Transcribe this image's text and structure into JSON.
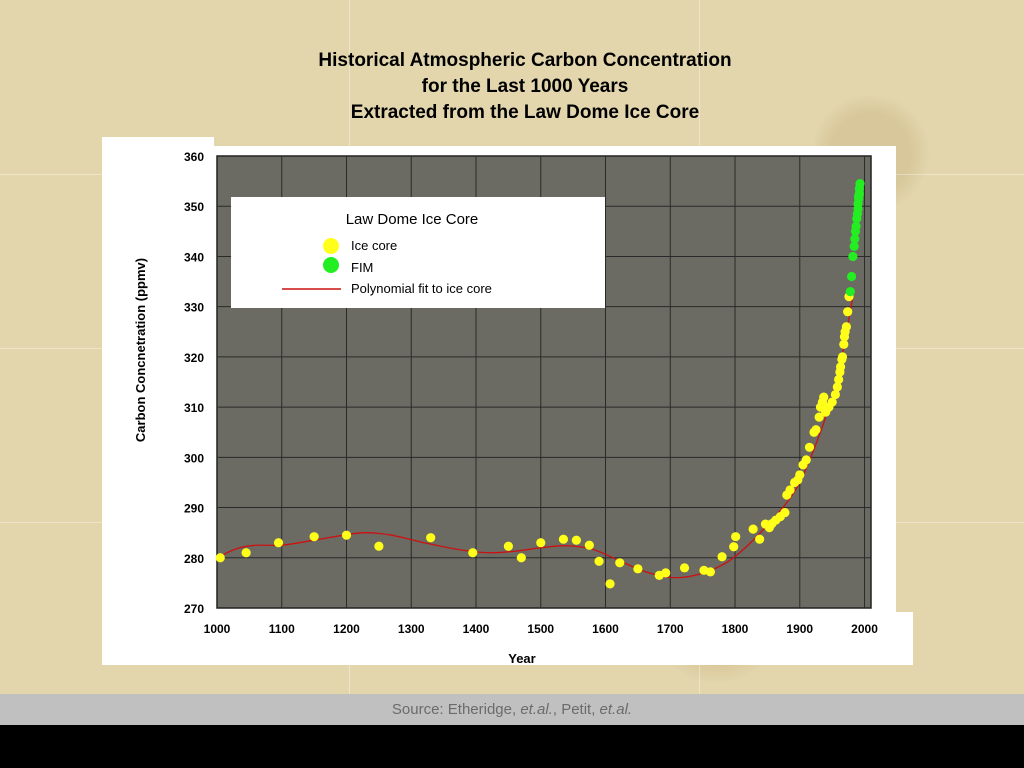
{
  "slide": {
    "title_lines": [
      "Historical Atmospheric Carbon Concentration",
      "for the Last 1000 Years",
      "Extracted from the Law Dome Ice Core"
    ],
    "source": {
      "prefix": "Source: Etheridge, ",
      "etal1": "et.al.",
      "middle": ", Petit, ",
      "etal2": "et.al."
    }
  },
  "chart_data": {
    "type": "scatter",
    "xlabel": "Year",
    "ylabel": "Carbon Concnetration (ppmv)",
    "xlim": [
      1000,
      2010
    ],
    "ylim": [
      270,
      360
    ],
    "x_ticks": [
      1000,
      1100,
      1200,
      1300,
      1400,
      1500,
      1600,
      1700,
      1800,
      1900,
      2000
    ],
    "y_ticks": [
      270,
      280,
      290,
      300,
      310,
      320,
      330,
      340,
      350,
      360
    ],
    "grid": true,
    "colors": {
      "plot_background": "#6b6b63",
      "grid": "#2a2a2a",
      "ice_core": "#ffff1a",
      "fim": "#22ee22",
      "fit": "#cc1111"
    },
    "legend": {
      "title": "Law Dome Ice Core",
      "placement": "top-left",
      "entries": [
        "Ice core",
        "FIM",
        "Polynomial fit to ice core"
      ]
    },
    "series": [
      {
        "name": "Ice core",
        "marker": "circle",
        "x": [
          1005,
          1045,
          1095,
          1150,
          1200,
          1250,
          1330,
          1395,
          1450,
          1470,
          1500,
          1535,
          1555,
          1575,
          1590,
          1607,
          1622,
          1650,
          1683,
          1693,
          1722,
          1752,
          1762,
          1780,
          1798,
          1801,
          1828,
          1838,
          1847,
          1853,
          1857,
          1863,
          1870,
          1877,
          1880,
          1885,
          1892,
          1897,
          1900,
          1905,
          1910,
          1915,
          1922,
          1925,
          1930,
          1932,
          1935,
          1937,
          1940,
          1945,
          1950,
          1955,
          1958,
          1960,
          1962,
          1963,
          1965,
          1966,
          1968,
          1969,
          1970,
          1972,
          1974,
          1976
        ],
        "y": [
          280,
          281,
          283,
          284.2,
          284.5,
          282.3,
          284,
          281,
          282.3,
          280,
          283,
          283.7,
          283.5,
          282.5,
          279.3,
          274.8,
          279,
          277.8,
          276.5,
          277,
          278,
          277.5,
          277.2,
          280.2,
          282.2,
          284.2,
          285.7,
          283.7,
          286.7,
          286,
          286.8,
          287.5,
          288.2,
          289,
          292.5,
          293.5,
          295,
          295.5,
          296.5,
          298.5,
          299.5,
          302,
          305,
          305.5,
          308,
          310,
          311,
          312,
          309,
          310,
          311,
          312.5,
          314,
          315.5,
          317,
          318,
          319.5,
          320,
          322.5,
          324,
          325,
          326,
          329,
          332
        ]
      },
      {
        "name": "FIM",
        "marker": "circle",
        "x": [
          1978,
          1980,
          1982,
          1984,
          1985,
          1986,
          1987,
          1988,
          1989,
          1990,
          1990,
          1991,
          1991,
          1992,
          1992,
          1993
        ],
        "y": [
          333,
          336,
          340,
          342,
          343.5,
          345,
          346,
          347.5,
          348.5,
          349.5,
          350.5,
          351.5,
          352,
          352.5,
          353.5,
          354.5
        ]
      },
      {
        "name": "Polynomial fit to ice core",
        "line": true,
        "x": [
          1005,
          1030,
          1060,
          1100,
          1150,
          1200,
          1230,
          1270,
          1320,
          1380,
          1420,
          1460,
          1500,
          1540,
          1580,
          1620,
          1660,
          1700,
          1730,
          1760,
          1790,
          1820,
          1850,
          1880,
          1900,
          1920,
          1940,
          1955,
          1965,
          1975,
          1982
        ],
        "y": [
          280.3,
          281.8,
          282.5,
          282.5,
          283.5,
          284.6,
          285,
          284.5,
          283,
          281.5,
          281,
          281.3,
          282,
          282.4,
          281.7,
          279.5,
          277.3,
          276.1,
          276.3,
          277.4,
          279.3,
          282.5,
          286.5,
          291,
          295,
          301,
          308,
          314.5,
          320,
          327,
          332
        ]
      }
    ]
  }
}
